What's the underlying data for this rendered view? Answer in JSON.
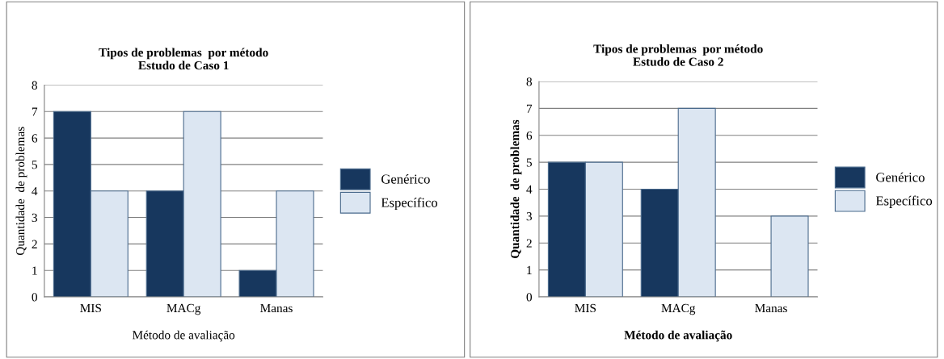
{
  "chart_data": [
    {
      "type": "bar",
      "title": "Tipos de problemas  por método\nEstudo de Caso 1",
      "xlabel": "Método de avaliação",
      "ylabel": "Quantidade  de problemas",
      "categories": [
        "MIS",
        "MACg",
        "Manas"
      ],
      "series": [
        {
          "name": "Genérico",
          "color": "#17375e",
          "values": [
            7,
            4,
            1
          ]
        },
        {
          "name": "Específico",
          "color": "#dce6f2",
          "values": [
            4,
            7,
            4
          ]
        }
      ],
      "ylim": [
        0,
        8
      ],
      "yticks": [
        0,
        1,
        2,
        3,
        4,
        5,
        6,
        7,
        8
      ],
      "grid": "y",
      "legend": "right"
    },
    {
      "type": "bar",
      "title": "Tipos de problemas  por método\nEstudo de Caso 2",
      "xlabel": "Método de avaliação",
      "ylabel": "Quantidade  de problemas",
      "categories": [
        "MIS",
        "MACg",
        "Manas"
      ],
      "series": [
        {
          "name": "Genérico",
          "color": "#17375e",
          "values": [
            5,
            4,
            0
          ]
        },
        {
          "name": "Específico",
          "color": "#dce6f2",
          "values": [
            5,
            7,
            3
          ]
        }
      ],
      "ylim": [
        0,
        8
      ],
      "yticks": [
        0,
        1,
        2,
        3,
        4,
        5,
        6,
        7,
        8
      ],
      "grid": "y",
      "legend": "right"
    }
  ]
}
